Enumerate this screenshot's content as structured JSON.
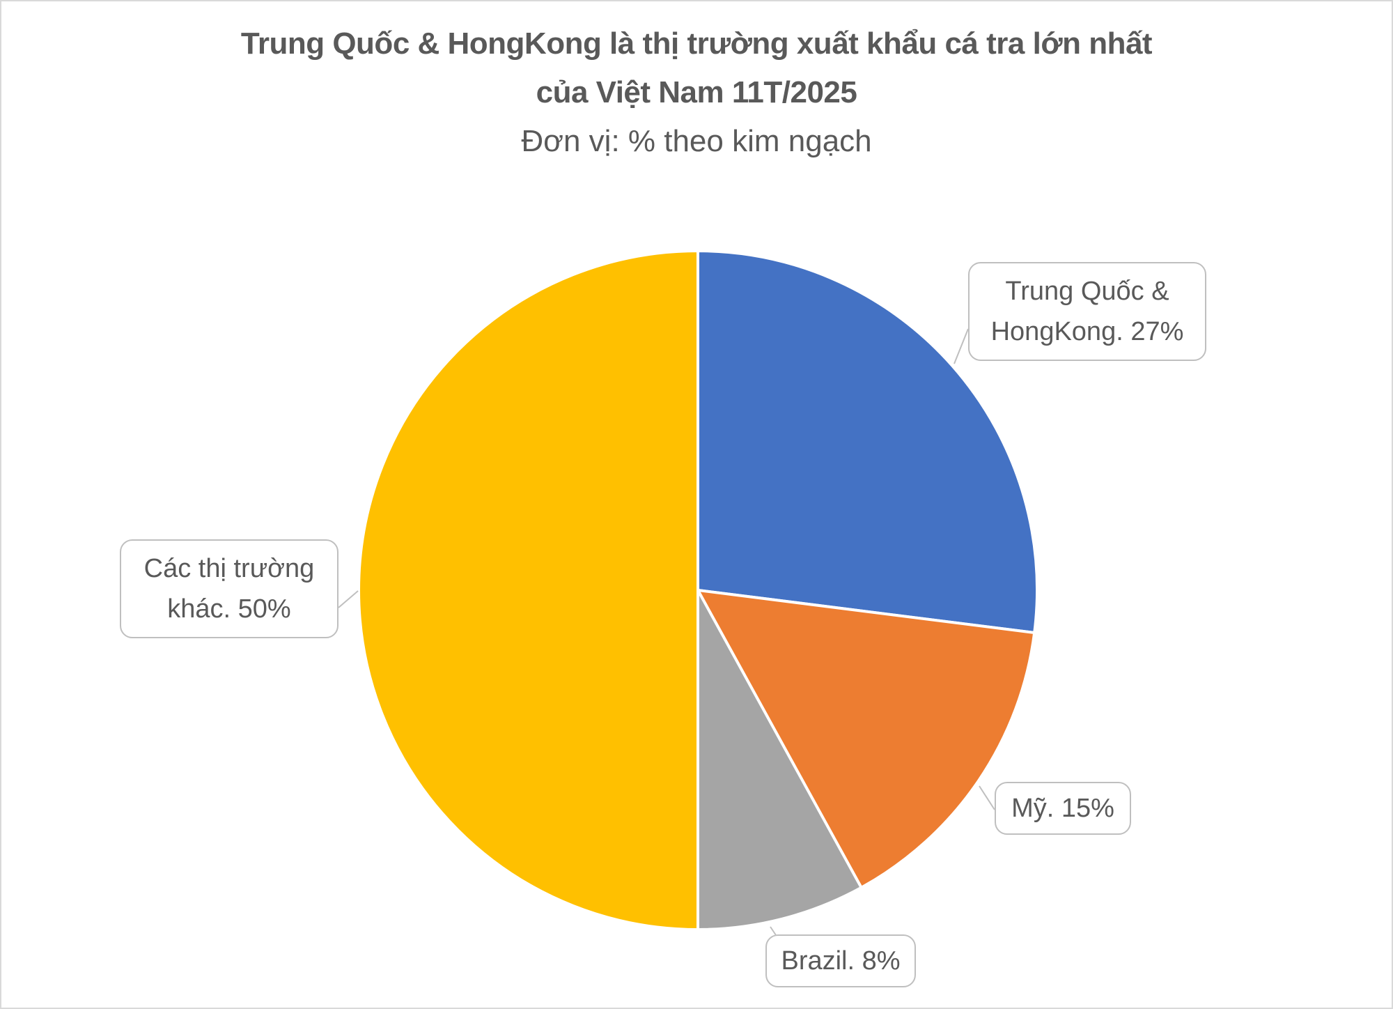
{
  "chart_data": {
    "type": "pie",
    "title": "Trung Quốc & HongKong là thị trường xuất khẩu cá tra lớn nhất",
    "title_line2": "của Việt Nam 11T/2025",
    "subtitle": "Đơn vị: % theo kim ngạch",
    "start_angle": "top, clockwise",
    "slices": [
      {
        "name": "Trung Quốc & HongKong",
        "value": 27,
        "label_line1": "Trung Quốc &",
        "label_line2": "HongKong. 27%",
        "color": "#4472C4"
      },
      {
        "name": "Mỹ",
        "value": 15,
        "label_line1": "Mỹ. 15%",
        "color": "#ED7D31"
      },
      {
        "name": "Brazil",
        "value": 8,
        "label_line1": "Brazil. 8%",
        "color": "#A5A5A5"
      },
      {
        "name": "Các thị trường khác",
        "value": 50,
        "label_line1": "Các thị trường",
        "label_line2": "khác. 50%",
        "color": "#FFC000"
      }
    ]
  }
}
